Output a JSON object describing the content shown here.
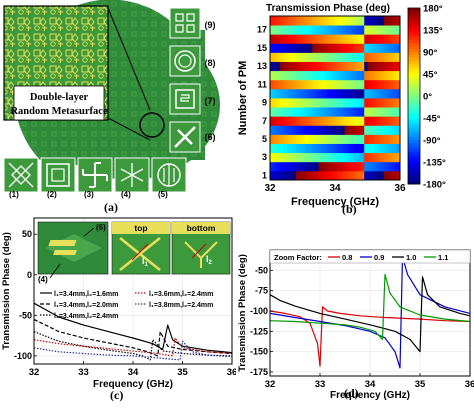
{
  "panel_a": {
    "label": "(a)",
    "callout": [
      "Double-layer",
      "Random Metasurface"
    ],
    "cells": [
      "(1)",
      "(2)",
      "(3)",
      "(4)",
      "(5)",
      "(6)",
      "(7)",
      "(8)",
      "(9)"
    ],
    "colors": {
      "board": "#2f8a3a",
      "light": "#7fcf5a",
      "metal": "#e8e05a"
    }
  },
  "panel_b": {
    "label": "(b)",
    "title": "Transmission Phase (deg)",
    "xlabel": "Frequency (GHz)",
    "ylabel": "Number of PM",
    "xticks": [
      "32",
      "34",
      "36"
    ],
    "xtick_values": [
      32,
      34,
      36
    ],
    "yticks": [
      "1",
      "3",
      "5",
      "7",
      "9",
      "11",
      "13",
      "15",
      "17"
    ],
    "colorbar": [
      "180°",
      "135°",
      "90°",
      "45°",
      "0°",
      "-45°",
      "-90°",
      "-135°",
      "-180°"
    ]
  },
  "panel_c": {
    "label": "(c)",
    "inset": {
      "top": "top",
      "bottom": "bottom",
      "tag6": "(6)",
      "tag4": "(4)",
      "l1": "l",
      "l1sub": "1",
      "l2": "l",
      "l2sub": "2"
    },
    "legend": [
      "l₁=3.4mm,l₂=1.6mm",
      "l₁=3.4mm,l₂=2.0mm",
      "l₁=3.4mm,l₂=2.4mm",
      "l₁=3.6mm,l₂=2.4mm",
      "l₁=3.8mm,l₂=2.4mm"
    ]
  },
  "panel_d": {
    "label": "(d)",
    "legend_title": "Zoom Factor:",
    "legend": [
      "0.8",
      "0.9",
      "1.0",
      "1.1"
    ]
  },
  "chart_data": [
    {
      "type": "heatmap",
      "title": "Transmission Phase (deg)",
      "xlabel": "Frequency (GHz)",
      "ylabel": "Number of PM",
      "xlim": [
        32,
        36
      ],
      "ylim": [
        1,
        18
      ],
      "colorbar_range": [
        -180,
        180
      ],
      "rows": 18,
      "row_phase_at_32GHz": [
        -150,
        -120,
        45,
        -30,
        90,
        -90,
        150,
        -10,
        60,
        -60,
        110,
        20,
        -170,
        70,
        -130,
        160,
        0,
        130
      ],
      "phase_slope_deg_per_GHz": -40,
      "resonance_GHz": 34.9
    },
    {
      "type": "line",
      "title": "",
      "xlabel": "Frequency (GHz)",
      "ylabel": "Transmission Phase (deg)",
      "xlim": [
        32,
        36
      ],
      "ylim": [
        -110,
        70
      ],
      "xticks": [
        32,
        33,
        34,
        35,
        36
      ],
      "yticks": [
        -100,
        -50,
        0,
        50
      ],
      "series": [
        {
          "name": "l₁=3.4mm,l₂=1.6mm",
          "color": "#000000",
          "x": [
            32,
            32.5,
            33,
            33.5,
            34,
            34.4,
            34.6,
            34.7,
            34.8,
            35,
            35.5,
            36
          ],
          "y": [
            -35,
            -52,
            -62,
            -70,
            -78,
            -85,
            -92,
            -62,
            -80,
            -88,
            -93,
            -96
          ]
        },
        {
          "name": "l₁=3.4mm,l₂=2.0mm",
          "color": "#000000",
          "x": [
            32,
            32.5,
            33,
            33.5,
            34,
            34.3,
            34.5,
            34.55,
            34.7,
            35,
            35.5,
            36
          ],
          "y": [
            -55,
            -70,
            -78,
            -84,
            -90,
            -95,
            -100,
            -70,
            -88,
            -92,
            -95,
            -97
          ]
        },
        {
          "name": "l₁=3.4mm,l₂=2.4mm",
          "color": "#000000",
          "x": [
            32,
            32.5,
            33,
            33.5,
            34,
            34.2,
            34.35,
            34.4,
            34.6,
            35,
            35.5,
            36
          ],
          "y": [
            -70,
            -82,
            -88,
            -93,
            -97,
            -100,
            -105,
            -80,
            -94,
            -97,
            -99,
            -100
          ]
        },
        {
          "name": "l₁=3.6mm,l₂=2.4mm",
          "color": "#cc0000",
          "x": [
            32,
            32.5,
            33,
            33.5,
            34,
            34.5,
            34.8,
            34.85,
            35,
            35.5,
            36
          ],
          "y": [
            -80,
            -85,
            -88,
            -91,
            -94,
            -97,
            -100,
            -78,
            -90,
            -95,
            -97
          ]
        },
        {
          "name": "l₁=3.8mm,l₂=2.4mm",
          "color": "#2233aa",
          "x": [
            32,
            32.5,
            33,
            33.5,
            34,
            34.4,
            34.95,
            35,
            35.2,
            35.5,
            36
          ],
          "y": [
            -90,
            -95,
            -97,
            -99,
            -100,
            -102,
            -105,
            -82,
            -95,
            -99,
            -101
          ]
        }
      ]
    },
    {
      "type": "line",
      "title": "",
      "xlabel": "Frequency (GHz)",
      "ylabel": "Transmission Phase (deg)",
      "xlim": [
        32,
        36
      ],
      "ylim": [
        -180,
        -25
      ],
      "xticks": [
        32,
        33,
        34,
        35,
        36
      ],
      "yticks": [
        -175,
        -150,
        -125,
        -100,
        -75,
        -50
      ],
      "series": [
        {
          "name": "0.8",
          "color": "#dd0000",
          "x": [
            32,
            32.3,
            32.6,
            32.8,
            32.95,
            33.0,
            33.05,
            33.15,
            33.4,
            33.8,
            34.3,
            35,
            35.5,
            36
          ],
          "y": [
            -100,
            -103,
            -107,
            -115,
            -140,
            -168,
            -95,
            -100,
            -103,
            -106,
            -108,
            -110,
            -112,
            -113
          ]
        },
        {
          "name": "0.9",
          "color": "#0000cc",
          "x": [
            32,
            32.5,
            33,
            33.5,
            34,
            34.3,
            34.5,
            34.6,
            34.65,
            34.75,
            35,
            35.5,
            36
          ],
          "y": [
            -103,
            -108,
            -113,
            -118,
            -125,
            -133,
            -150,
            -170,
            -33,
            -55,
            -80,
            -95,
            -103
          ]
        },
        {
          "name": "1.0",
          "color": "#000000",
          "x": [
            32,
            32.2,
            32.5,
            33,
            33.5,
            34,
            34.5,
            34.8,
            35.0,
            35.05,
            35.15,
            35.4,
            35.8,
            36
          ],
          "y": [
            -80,
            -87,
            -94,
            -103,
            -110,
            -117,
            -125,
            -135,
            -150,
            -58,
            -80,
            -95,
            -103,
            -106
          ]
        },
        {
          "name": "1.1",
          "color": "#009900",
          "x": [
            32,
            32.5,
            33,
            33.5,
            33.8,
            34.1,
            34.25,
            34.3,
            34.4,
            34.6,
            35,
            35.5,
            36
          ],
          "y": [
            -112,
            -113,
            -115,
            -117,
            -120,
            -125,
            -135,
            -55,
            -78,
            -95,
            -105,
            -110,
            -113
          ]
        }
      ]
    }
  ]
}
